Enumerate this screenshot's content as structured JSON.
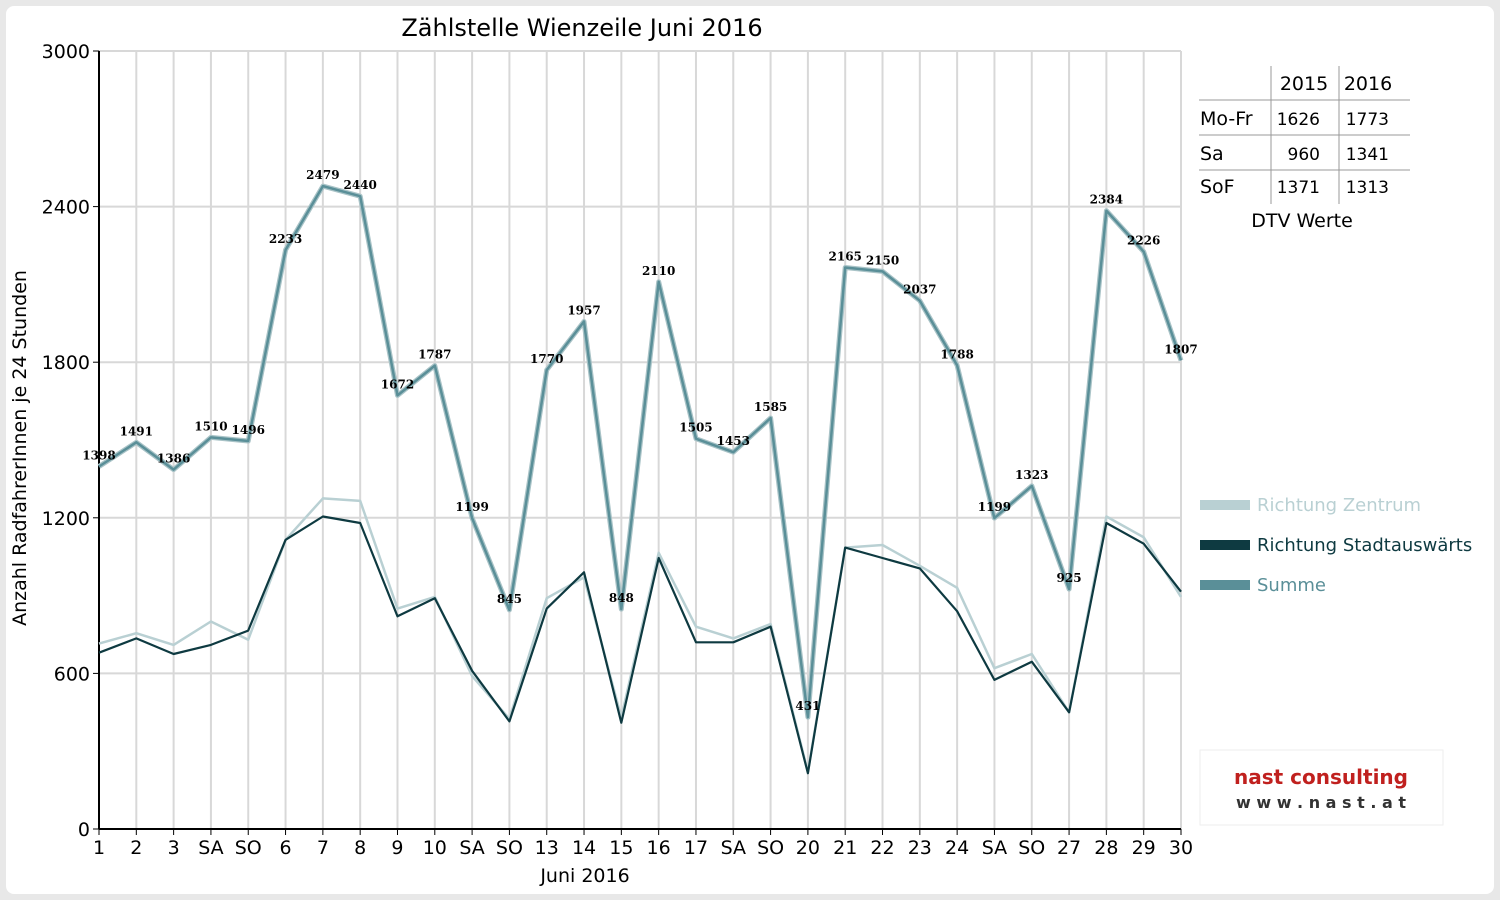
{
  "chart_data": {
    "type": "line",
    "title": "Zählstelle Wienzeile Juni 2016",
    "xlabel": "Juni 2016",
    "ylabel": "Anzahl RadfahrerInnen je 24 Stunden",
    "ylim": [
      0,
      3000
    ],
    "yticks": [
      "0",
      "600",
      "1200",
      "1800",
      "2400",
      "3000"
    ],
    "grid": true,
    "legend_position": "right",
    "categories": [
      "1",
      "2",
      "3",
      "SA",
      "SO",
      "6",
      "7",
      "8",
      "9",
      "10",
      "SA",
      "SO",
      "13",
      "14",
      "15",
      "16",
      "17",
      "SA",
      "SO",
      "20",
      "21",
      "22",
      "23",
      "24",
      "SA",
      "SO",
      "27",
      "28",
      "29",
      "30"
    ],
    "sunday_indices": [
      4,
      11,
      18,
      25
    ],
    "series": [
      {
        "name": "Richtung Zentrum",
        "color": "#b9d0d3",
        "values": [
          715,
          755,
          710,
          800,
          730,
          1115,
          1275,
          1265,
          850,
          895,
          590,
          425,
          890,
          970,
          430,
          1065,
          780,
          735,
          790,
          220,
          1085,
          1095,
          1015,
          930,
          620,
          675,
          450,
          1205,
          1125,
          895
        ]
      },
      {
        "name": "Richtung Stadtauswärts",
        "color": "#0e3a41",
        "values": [
          680,
          735,
          675,
          710,
          765,
          1115,
          1205,
          1180,
          820,
          890,
          610,
          415,
          850,
          990,
          410,
          1045,
          720,
          720,
          780,
          215,
          1085,
          1045,
          1005,
          840,
          575,
          645,
          450,
          1180,
          1100,
          915
        ]
      },
      {
        "name": "Summe",
        "color": "#5a8f98",
        "values": [
          1398,
          1491,
          1386,
          1510,
          1496,
          2233,
          2479,
          2440,
          1672,
          1787,
          1199,
          845,
          1770,
          1957,
          848,
          2110,
          1505,
          1453,
          1585,
          431,
          2165,
          2150,
          2037,
          1788,
          1199,
          1323,
          925,
          2384,
          2226,
          1807
        ]
      }
    ],
    "data_labels": [
      "1398",
      "1491",
      "1386",
      "1510",
      "1496",
      "2233",
      "2479",
      "2440",
      "1672",
      "1787",
      "1199",
      "845",
      "1770",
      "1957",
      "848",
      "2110",
      "1505",
      "1453",
      "1585",
      "431",
      "2165",
      "2150",
      "2037",
      "1788",
      "1199",
      "1323",
      "925",
      "2384",
      "2226",
      "1807"
    ]
  },
  "table": {
    "headers": [
      "",
      "2015",
      "2016"
    ],
    "rows": [
      [
        "Mo-Fr",
        "1626",
        "1773"
      ],
      [
        "Sa",
        "960",
        "1341"
      ],
      [
        "SoF",
        "1371",
        "1313"
      ]
    ],
    "caption": "DTV Werte"
  },
  "logo": {
    "line1": "nast consulting",
    "line2": "w w w . n a s t . a t"
  },
  "colors": {
    "sunday_label": "#e00000",
    "grid": "#d8d8d8"
  }
}
